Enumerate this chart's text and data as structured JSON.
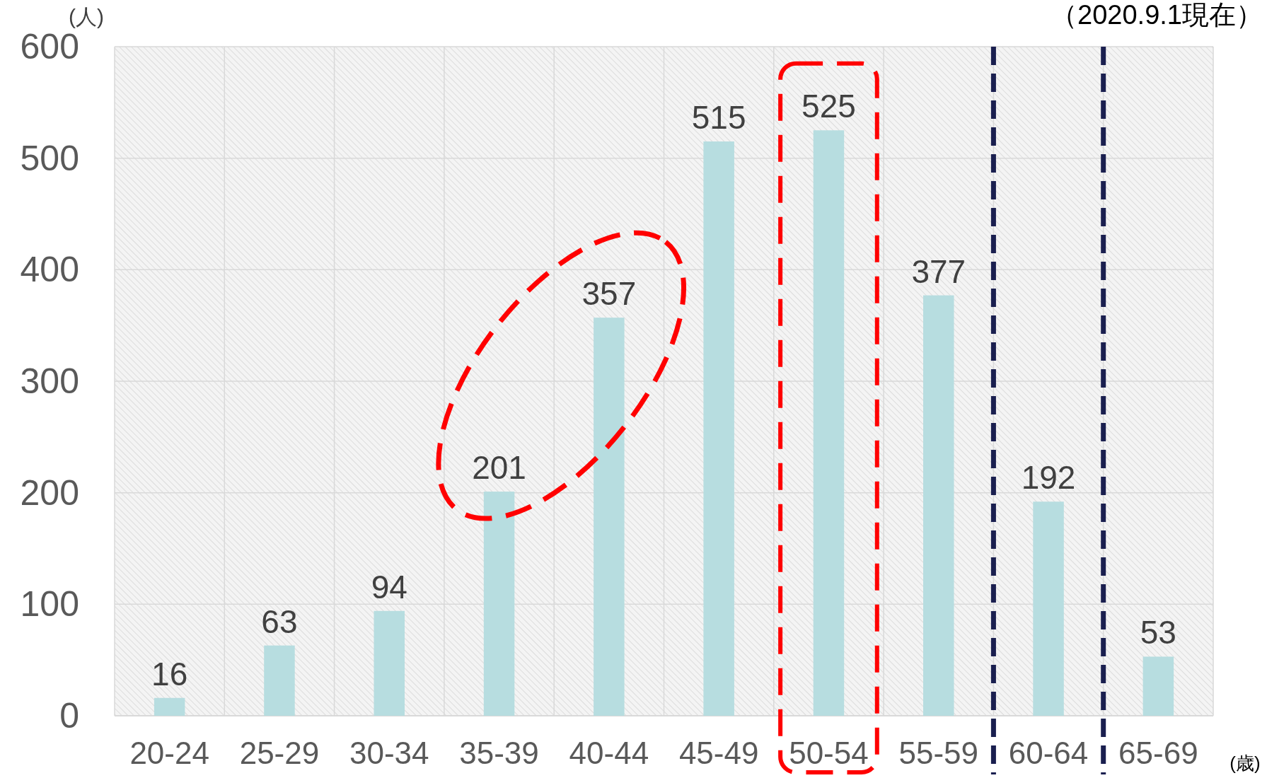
{
  "chart_data": {
    "type": "bar",
    "ylabel": "(人)",
    "xlabel": "(歳)",
    "annotations": [
      "（2020.9.1現在）"
    ],
    "categories": [
      "20-24",
      "25-29",
      "30-34",
      "35-39",
      "40-44",
      "45-49",
      "50-54",
      "55-59",
      "60-64",
      "65-69"
    ],
    "values": [
      16,
      63,
      94,
      201,
      357,
      515,
      525,
      377,
      192,
      53
    ],
    "color": "#b7dde0",
    "data_labels": true,
    "ylim": [
      0,
      600
    ],
    "yticks": [
      0,
      100,
      200,
      300,
      400,
      500,
      600
    ],
    "grid": true
  }
}
